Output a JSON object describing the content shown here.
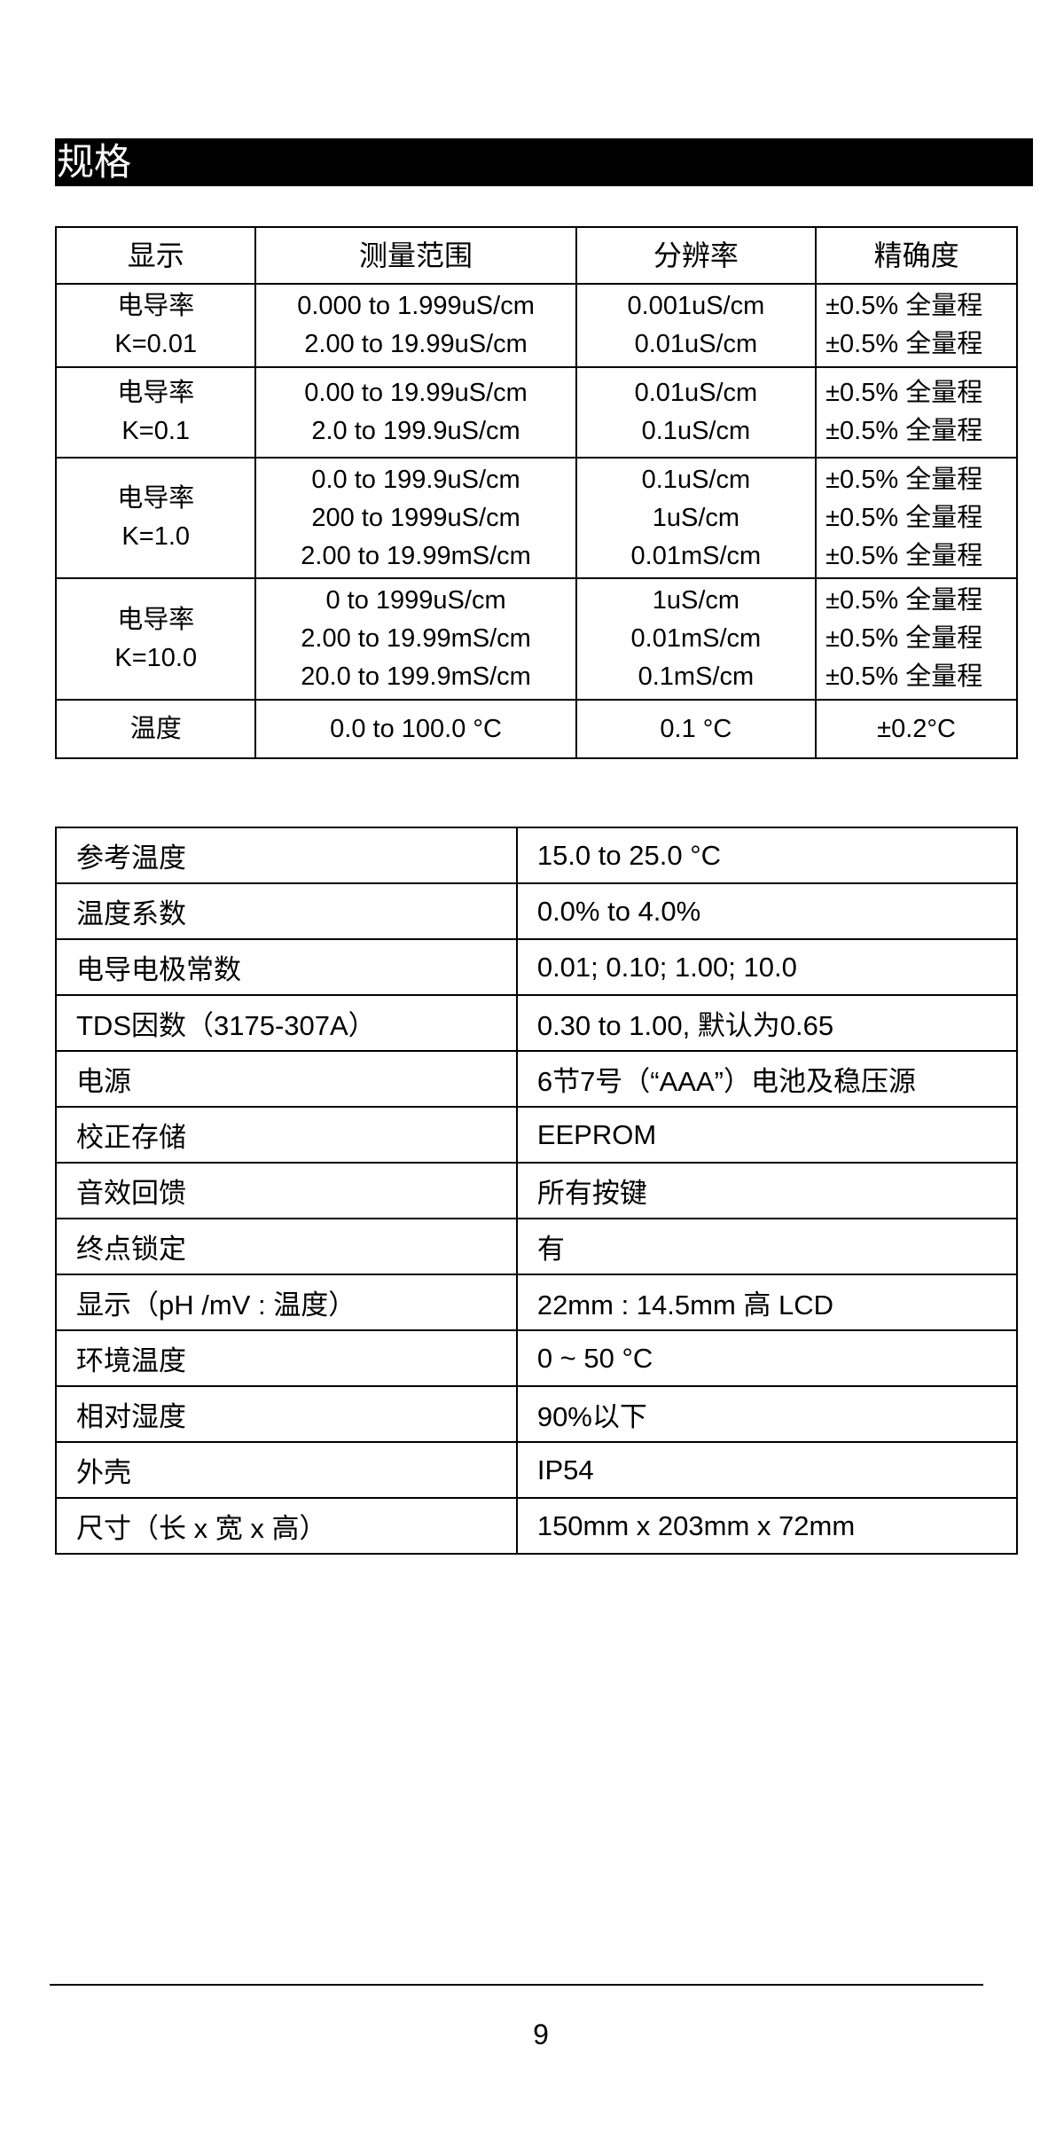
{
  "section_title": "规格",
  "spec_table": {
    "headers": [
      "显示",
      "测量范围",
      "分辨率",
      "精确度"
    ],
    "rows": [
      {
        "display": [
          "电导率",
          "K=0.01"
        ],
        "range": [
          "0.000 to 1.999uS/cm",
          "2.00 to 19.99uS/cm"
        ],
        "resolution": [
          "0.001uS/cm",
          "0.01uS/cm"
        ],
        "accuracy": [
          "±0.5%  全量程",
          "±0.5%  全量程"
        ]
      },
      {
        "display": [
          "电导率",
          "K=0.1"
        ],
        "range": [
          "0.00 to 19.99uS/cm",
          "2.0 to 199.9uS/cm"
        ],
        "resolution": [
          "0.01uS/cm",
          "0.1uS/cm"
        ],
        "accuracy": [
          "±0.5%  全量程",
          "±0.5%  全量程"
        ]
      },
      {
        "display": [
          "电导率",
          "K=1.0"
        ],
        "range": [
          "0.0 to 199.9uS/cm",
          "200 to 1999uS/cm",
          "2.00 to 19.99mS/cm"
        ],
        "resolution": [
          "0.1uS/cm",
          "1uS/cm",
          "0.01mS/cm"
        ],
        "accuracy": [
          "±0.5%  全量程",
          "±0.5%  全量程",
          "±0.5%  全量程"
        ]
      },
      {
        "display": [
          "电导率",
          "K=10.0"
        ],
        "range": [
          "0 to 1999uS/cm",
          "2.00 to 19.99mS/cm",
          "20.0 to 199.9mS/cm"
        ],
        "resolution": [
          "1uS/cm",
          "0.01mS/cm",
          "0.1mS/cm"
        ],
        "accuracy": [
          "±0.5%  全量程",
          "±0.5%  全量程",
          "±0.5%  全量程"
        ]
      },
      {
        "display": [
          "温度"
        ],
        "range": [
          "0.0 to 100.0 °C"
        ],
        "resolution": [
          "0.1 °C"
        ],
        "accuracy": [
          "±0.2°C"
        ]
      }
    ]
  },
  "props_table": [
    {
      "label": "参考温度",
      "value": "15.0 to 25.0 °C"
    },
    {
      "label": "温度系数",
      "value": "0.0% to 4.0%"
    },
    {
      "label": "电导电极常数",
      "value": "0.01; 0.10; 1.00; 10.0"
    },
    {
      "label": "TDS因数（3175-307A）",
      "value": "0.30 to 1.00, 默认为0.65"
    },
    {
      "label": "电源",
      "value": "6节7号（“AAA”）电池及稳压源"
    },
    {
      "label": "校正存储",
      "value": "EEPROM"
    },
    {
      "label": "音效回馈",
      "value": "所有按键"
    },
    {
      "label": "终点锁定",
      "value": "有"
    },
    {
      "label": "显示（pH /mV : 温度）",
      "value": "22mm : 14.5mm  高  LCD"
    },
    {
      "label": "环境温度",
      "value": "0 ~ 50 °C"
    },
    {
      "label": "相对湿度",
      "value": "90%以下"
    },
    {
      "label": "外壳",
      "value": "IP54"
    },
    {
      "label": "尺寸（长 x 宽 x 高）",
      "value": "150mm x 203mm x 72mm"
    }
  ],
  "page_number": "9"
}
